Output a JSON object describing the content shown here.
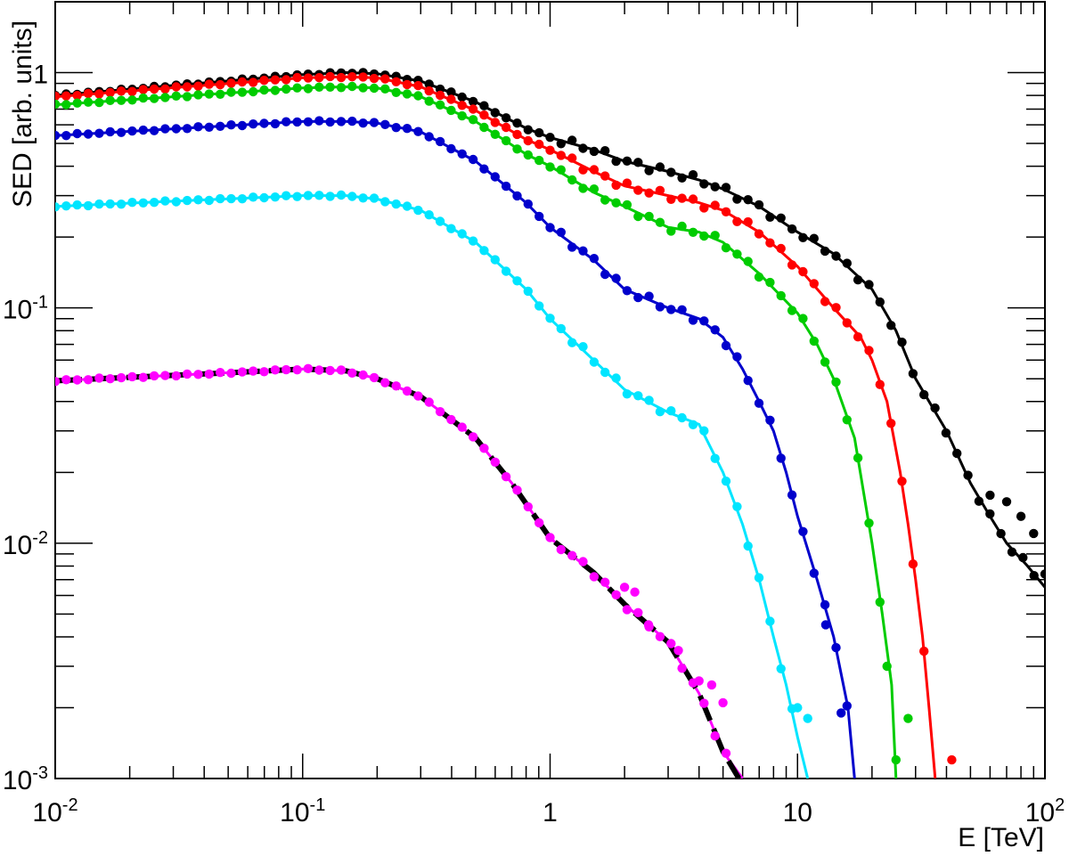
{
  "chart_data": {
    "type": "scatter",
    "title": "",
    "xlabel": "E [TeV]",
    "ylabel": "SED [arb. units]",
    "x_scale": "log",
    "y_scale": "log",
    "xlim": [
      0.01,
      100
    ],
    "ylim": [
      0.001,
      2
    ],
    "grid": false,
    "x_ticks": [
      {
        "value": 0.01,
        "base": "10",
        "exp": "-2"
      },
      {
        "value": 0.1,
        "base": "10",
        "exp": "-1"
      },
      {
        "value": 1,
        "base": "1",
        "exp": ""
      },
      {
        "value": 10,
        "base": "10",
        "exp": ""
      },
      {
        "value": 100,
        "base": "10",
        "exp": "2"
      }
    ],
    "y_ticks": [
      {
        "value": 0.001,
        "base": "10",
        "exp": "-3"
      },
      {
        "value": 0.01,
        "base": "10",
        "exp": "-2"
      },
      {
        "value": 0.1,
        "base": "10",
        "exp": "-1"
      },
      {
        "value": 1,
        "base": "1",
        "exp": ""
      }
    ],
    "series": [
      {
        "color": "#000000",
        "points": [
          [
            0.01,
            0.8
          ],
          [
            0.1,
            0.98
          ],
          [
            0.15,
            1.0
          ],
          [
            0.2,
            0.99
          ],
          [
            0.3,
            0.92
          ],
          [
            0.5,
            0.75
          ],
          [
            0.8,
            0.58
          ],
          [
            1,
            0.53
          ],
          [
            1.5,
            0.47
          ],
          [
            2,
            0.42
          ],
          [
            3,
            0.38
          ],
          [
            4,
            0.35
          ],
          [
            5,
            0.32
          ],
          [
            7,
            0.27
          ],
          [
            10,
            0.21
          ],
          [
            14,
            0.17
          ],
          [
            20,
            0.12
          ],
          [
            25,
            0.08
          ],
          [
            30,
            0.05
          ],
          [
            40,
            0.03
          ],
          [
            50,
            0.018
          ],
          [
            60,
            0.013
          ],
          [
            70,
            0.01
          ],
          [
            85,
            0.008
          ],
          [
            100,
            0.0065
          ]
        ],
        "markers": [
          [
            60,
            0.016
          ],
          [
            70,
            0.015
          ],
          [
            80,
            0.013
          ],
          [
            90,
            0.011
          ],
          [
            100,
            0.0074
          ]
        ]
      },
      {
        "color": "#ff0000",
        "points": [
          [
            0.01,
            0.79
          ],
          [
            0.1,
            0.95
          ],
          [
            0.15,
            0.96
          ],
          [
            0.2,
            0.95
          ],
          [
            0.3,
            0.87
          ],
          [
            0.5,
            0.69
          ],
          [
            0.8,
            0.52
          ],
          [
            1,
            0.47
          ],
          [
            1.5,
            0.38
          ],
          [
            2,
            0.33
          ],
          [
            3,
            0.3
          ],
          [
            4,
            0.28
          ],
          [
            5,
            0.26
          ],
          [
            7,
            0.21
          ],
          [
            10,
            0.15
          ],
          [
            14,
            0.1
          ],
          [
            18,
            0.075
          ],
          [
            20,
            0.06
          ],
          [
            23,
            0.04
          ],
          [
            26,
            0.02
          ],
          [
            28,
            0.012
          ],
          [
            30,
            0.007
          ],
          [
            32,
            0.004
          ],
          [
            34,
            0.002
          ],
          [
            36,
            0.001
          ]
        ],
        "markers": [
          [
            42,
            0.0012
          ]
        ]
      },
      {
        "color": "#00cc00",
        "points": [
          [
            0.01,
            0.73
          ],
          [
            0.1,
            0.86
          ],
          [
            0.15,
            0.87
          ],
          [
            0.2,
            0.86
          ],
          [
            0.3,
            0.79
          ],
          [
            0.5,
            0.62
          ],
          [
            0.8,
            0.45
          ],
          [
            1,
            0.4
          ],
          [
            1.5,
            0.31
          ],
          [
            2,
            0.27
          ],
          [
            3,
            0.22
          ],
          [
            4,
            0.21
          ],
          [
            5,
            0.19
          ],
          [
            7,
            0.14
          ],
          [
            10,
            0.095
          ],
          [
            12,
            0.07
          ],
          [
            14,
            0.05
          ],
          [
            17,
            0.028
          ],
          [
            20,
            0.01
          ],
          [
            22,
            0.005
          ],
          [
            24,
            0.0025
          ],
          [
            25,
            0.001
          ]
        ],
        "markers": [
          [
            23,
            0.003
          ],
          [
            25,
            0.0012
          ],
          [
            28,
            0.0018
          ]
        ]
      },
      {
        "color": "#0000cc",
        "points": [
          [
            0.01,
            0.54
          ],
          [
            0.1,
            0.62
          ],
          [
            0.15,
            0.62
          ],
          [
            0.2,
            0.61
          ],
          [
            0.3,
            0.56
          ],
          [
            0.5,
            0.42
          ],
          [
            0.8,
            0.28
          ],
          [
            1,
            0.22
          ],
          [
            1.5,
            0.16
          ],
          [
            2,
            0.12
          ],
          [
            3,
            0.1
          ],
          [
            4,
            0.09
          ],
          [
            5,
            0.075
          ],
          [
            6,
            0.055
          ],
          [
            7,
            0.04
          ],
          [
            8,
            0.03
          ],
          [
            9,
            0.02
          ],
          [
            10,
            0.013
          ],
          [
            12,
            0.007
          ],
          [
            14,
            0.004
          ],
          [
            16,
            0.002
          ],
          [
            17,
            0.001
          ]
        ],
        "markers": [
          [
            15,
            0.0019
          ],
          [
            13,
            0.0045
          ]
        ]
      },
      {
        "color": "#00e5ff",
        "points": [
          [
            0.01,
            0.27
          ],
          [
            0.1,
            0.3
          ],
          [
            0.15,
            0.3
          ],
          [
            0.2,
            0.29
          ],
          [
            0.3,
            0.26
          ],
          [
            0.5,
            0.19
          ],
          [
            0.8,
            0.12
          ],
          [
            1,
            0.09
          ],
          [
            1.5,
            0.06
          ],
          [
            2,
            0.045
          ],
          [
            3,
            0.036
          ],
          [
            4,
            0.032
          ],
          [
            5,
            0.02
          ],
          [
            6,
            0.012
          ],
          [
            7,
            0.007
          ],
          [
            8,
            0.004
          ],
          [
            9,
            0.0025
          ],
          [
            10,
            0.0015
          ],
          [
            11,
            0.001
          ]
        ],
        "markers": [
          [
            10,
            0.002
          ],
          [
            11,
            0.0018
          ]
        ]
      },
      {
        "color": "#ff00ff",
        "points": [
          [
            0.01,
            0.049
          ],
          [
            0.05,
            0.053
          ],
          [
            0.1,
            0.055
          ],
          [
            0.15,
            0.054
          ],
          [
            0.2,
            0.05
          ],
          [
            0.3,
            0.042
          ],
          [
            0.5,
            0.028
          ],
          [
            0.7,
            0.018
          ],
          [
            1,
            0.0105
          ],
          [
            1.5,
            0.0075
          ],
          [
            2,
            0.0055
          ],
          [
            3,
            0.0038
          ],
          [
            4,
            0.0023
          ],
          [
            5,
            0.0013
          ],
          [
            6,
            0.001
          ]
        ],
        "markers": [
          [
            2,
            0.0065
          ],
          [
            2.2,
            0.0062
          ],
          [
            2.5,
            0.0045
          ],
          [
            3.3,
            0.0035
          ],
          [
            4,
            0.0026
          ],
          [
            4.5,
            0.0025
          ],
          [
            5,
            0.0021
          ]
        ]
      }
    ],
    "dashed_fit": {
      "color": "#000000",
      "points": [
        [
          0.01,
          0.049
        ],
        [
          0.05,
          0.053
        ],
        [
          0.1,
          0.055
        ],
        [
          0.15,
          0.054
        ],
        [
          0.2,
          0.05
        ],
        [
          0.3,
          0.042
        ],
        [
          0.5,
          0.028
        ],
        [
          0.7,
          0.018
        ],
        [
          1,
          0.0105
        ],
        [
          1.5,
          0.0075
        ],
        [
          2,
          0.0055
        ],
        [
          3,
          0.0038
        ],
        [
          4,
          0.0023
        ],
        [
          5,
          0.0013
        ],
        [
          5.8,
          0.001
        ]
      ]
    }
  }
}
